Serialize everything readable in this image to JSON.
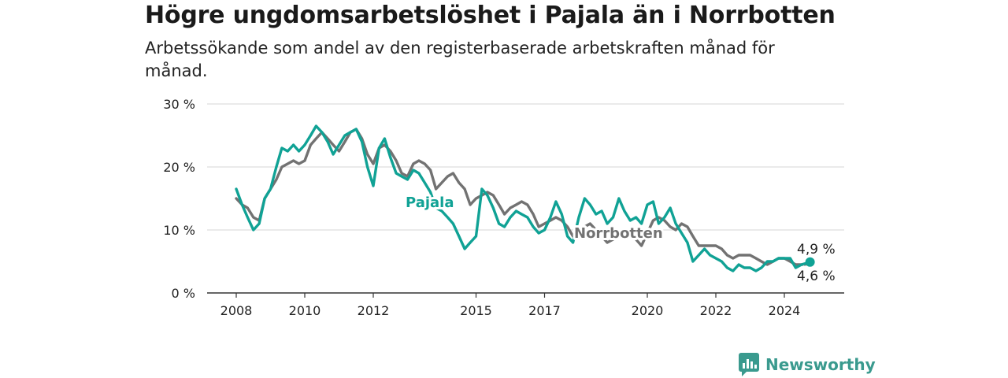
{
  "header": {
    "title": "Högre ungdomsarbetslöshet i Pajala än i Norrbotten",
    "subtitle": "Arbetssökande som andel av den registerbaserade arbetskraften månad för månad."
  },
  "brand": {
    "name": "Newsworthy",
    "icon": "newsworthy-logo-icon",
    "color": "#3a9a8e"
  },
  "chart_data": {
    "type": "line",
    "title": "Högre ungdomsarbetslöshet i Pajala än i Norrbotten",
    "subtitle": "Arbetssökande som andel av den registerbaserade arbetskraften månad för månad.",
    "x_range": [
      2008.0,
      2024.75
    ],
    "ylim": [
      0,
      30
    ],
    "y_ticks": [
      0,
      10,
      20,
      30
    ],
    "y_tick_labels": [
      "0 %",
      "10 %",
      "20 %",
      "30 %"
    ],
    "x_ticks": [
      2008,
      2010,
      2012,
      2015,
      2017,
      2020,
      2022,
      2024
    ],
    "x_tick_labels": [
      "2008",
      "2010",
      "2012",
      "2015",
      "2017",
      "2020",
      "2022",
      "2024"
    ],
    "grid": "horizontal",
    "series": [
      {
        "name": "Norrbotten",
        "color": "#727272",
        "end_label": "4,6 %",
        "points": [
          [
            2008.0,
            15.0
          ],
          [
            2008.17,
            14.0
          ],
          [
            2008.33,
            13.5
          ],
          [
            2008.5,
            12.0
          ],
          [
            2008.67,
            11.5
          ],
          [
            2008.83,
            15.0
          ],
          [
            2009.0,
            16.5
          ],
          [
            2009.17,
            18.0
          ],
          [
            2009.33,
            20.0
          ],
          [
            2009.5,
            20.5
          ],
          [
            2009.67,
            21.0
          ],
          [
            2009.83,
            20.5
          ],
          [
            2010.0,
            21.0
          ],
          [
            2010.17,
            23.5
          ],
          [
            2010.33,
            24.5
          ],
          [
            2010.5,
            25.5
          ],
          [
            2010.67,
            24.5
          ],
          [
            2010.83,
            23.5
          ],
          [
            2011.0,
            22.5
          ],
          [
            2011.17,
            24.0
          ],
          [
            2011.33,
            25.5
          ],
          [
            2011.5,
            26.0
          ],
          [
            2011.67,
            24.5
          ],
          [
            2011.83,
            22.0
          ],
          [
            2012.0,
            20.5
          ],
          [
            2012.17,
            23.0
          ],
          [
            2012.33,
            23.5
          ],
          [
            2012.5,
            22.5
          ],
          [
            2012.67,
            21.0
          ],
          [
            2012.83,
            19.0
          ],
          [
            2013.0,
            18.5
          ],
          [
            2013.17,
            20.5
          ],
          [
            2013.33,
            21.0
          ],
          [
            2013.5,
            20.5
          ],
          [
            2013.67,
            19.5
          ],
          [
            2013.83,
            16.5
          ],
          [
            2014.0,
            17.5
          ],
          [
            2014.17,
            18.5
          ],
          [
            2014.33,
            19.0
          ],
          [
            2014.5,
            17.5
          ],
          [
            2014.67,
            16.5
          ],
          [
            2014.83,
            14.0
          ],
          [
            2015.0,
            15.0
          ],
          [
            2015.17,
            15.5
          ],
          [
            2015.33,
            16.0
          ],
          [
            2015.5,
            15.5
          ],
          [
            2015.67,
            14.0
          ],
          [
            2015.83,
            12.5
          ],
          [
            2016.0,
            13.5
          ],
          [
            2016.17,
            14.0
          ],
          [
            2016.33,
            14.5
          ],
          [
            2016.5,
            14.0
          ],
          [
            2016.67,
            12.5
          ],
          [
            2016.83,
            10.5
          ],
          [
            2017.0,
            11.0
          ],
          [
            2017.17,
            11.5
          ],
          [
            2017.33,
            12.0
          ],
          [
            2017.5,
            11.5
          ],
          [
            2017.67,
            10.5
          ],
          [
            2017.83,
            9.0
          ],
          [
            2018.0,
            10.0
          ],
          [
            2018.17,
            10.5
          ],
          [
            2018.33,
            11.0
          ],
          [
            2018.5,
            10.0
          ],
          [
            2018.67,
            9.0
          ],
          [
            2018.83,
            8.0
          ],
          [
            2019.0,
            8.5
          ],
          [
            2019.17,
            9.5
          ],
          [
            2019.33,
            10.0
          ],
          [
            2019.5,
            9.5
          ],
          [
            2019.67,
            8.5
          ],
          [
            2019.83,
            7.5
          ],
          [
            2020.0,
            9.5
          ],
          [
            2020.17,
            11.5
          ],
          [
            2020.33,
            12.0
          ],
          [
            2020.5,
            11.5
          ],
          [
            2020.67,
            10.5
          ],
          [
            2020.83,
            10.0
          ],
          [
            2021.0,
            11.0
          ],
          [
            2021.17,
            10.5
          ],
          [
            2021.33,
            9.0
          ],
          [
            2021.5,
            7.5
          ],
          [
            2021.67,
            7.5
          ],
          [
            2021.83,
            7.5
          ],
          [
            2022.0,
            7.5
          ],
          [
            2022.17,
            7.0
          ],
          [
            2022.33,
            6.0
          ],
          [
            2022.5,
            5.5
          ],
          [
            2022.67,
            6.0
          ],
          [
            2022.83,
            6.0
          ],
          [
            2023.0,
            6.0
          ],
          [
            2023.17,
            5.5
          ],
          [
            2023.33,
            5.0
          ],
          [
            2023.5,
            4.5
          ],
          [
            2023.67,
            5.0
          ],
          [
            2023.83,
            5.5
          ],
          [
            2024.0,
            5.5
          ],
          [
            2024.17,
            5.0
          ],
          [
            2024.33,
            4.5
          ],
          [
            2024.5,
            4.5
          ],
          [
            2024.75,
            4.6
          ]
        ]
      },
      {
        "name": "Pajala",
        "color": "#10a295",
        "end_label": "4,9 %",
        "points": [
          [
            2008.0,
            16.5
          ],
          [
            2008.17,
            14.0
          ],
          [
            2008.33,
            12.0
          ],
          [
            2008.5,
            10.0
          ],
          [
            2008.67,
            11.0
          ],
          [
            2008.83,
            15.0
          ],
          [
            2009.0,
            16.5
          ],
          [
            2009.17,
            20.0
          ],
          [
            2009.33,
            23.0
          ],
          [
            2009.5,
            22.5
          ],
          [
            2009.67,
            23.5
          ],
          [
            2009.83,
            22.5
          ],
          [
            2010.0,
            23.5
          ],
          [
            2010.17,
            25.0
          ],
          [
            2010.33,
            26.5
          ],
          [
            2010.5,
            25.5
          ],
          [
            2010.67,
            24.0
          ],
          [
            2010.83,
            22.0
          ],
          [
            2011.0,
            23.5
          ],
          [
            2011.17,
            25.0
          ],
          [
            2011.33,
            25.5
          ],
          [
            2011.5,
            26.0
          ],
          [
            2011.67,
            24.0
          ],
          [
            2011.83,
            20.0
          ],
          [
            2012.0,
            17.0
          ],
          [
            2012.17,
            23.0
          ],
          [
            2012.33,
            24.5
          ],
          [
            2012.5,
            21.5
          ],
          [
            2012.67,
            19.0
          ],
          [
            2012.83,
            18.5
          ],
          [
            2013.0,
            18.0
          ],
          [
            2013.17,
            19.5
          ],
          [
            2013.33,
            19.0
          ],
          [
            2013.5,
            17.5
          ],
          [
            2013.67,
            16.0
          ],
          [
            2013.83,
            13.5
          ],
          [
            2014.0,
            13.0
          ],
          [
            2014.17,
            12.0
          ],
          [
            2014.33,
            11.0
          ],
          [
            2014.5,
            9.0
          ],
          [
            2014.67,
            7.0
          ],
          [
            2014.83,
            8.0
          ],
          [
            2015.0,
            9.0
          ],
          [
            2015.17,
            16.5
          ],
          [
            2015.33,
            15.5
          ],
          [
            2015.5,
            13.5
          ],
          [
            2015.67,
            11.0
          ],
          [
            2015.83,
            10.5
          ],
          [
            2016.0,
            12.0
          ],
          [
            2016.17,
            13.0
          ],
          [
            2016.33,
            12.5
          ],
          [
            2016.5,
            12.0
          ],
          [
            2016.67,
            10.5
          ],
          [
            2016.83,
            9.5
          ],
          [
            2017.0,
            10.0
          ],
          [
            2017.17,
            12.0
          ],
          [
            2017.33,
            14.5
          ],
          [
            2017.5,
            12.5
          ],
          [
            2017.67,
            9.0
          ],
          [
            2017.83,
            8.0
          ],
          [
            2018.0,
            12.0
          ],
          [
            2018.17,
            15.0
          ],
          [
            2018.33,
            14.0
          ],
          [
            2018.5,
            12.5
          ],
          [
            2018.67,
            13.0
          ],
          [
            2018.83,
            11.0
          ],
          [
            2019.0,
            12.0
          ],
          [
            2019.17,
            15.0
          ],
          [
            2019.33,
            13.0
          ],
          [
            2019.5,
            11.5
          ],
          [
            2019.67,
            12.0
          ],
          [
            2019.83,
            11.0
          ],
          [
            2020.0,
            14.0
          ],
          [
            2020.17,
            14.5
          ],
          [
            2020.33,
            11.0
          ],
          [
            2020.5,
            12.0
          ],
          [
            2020.67,
            13.5
          ],
          [
            2020.83,
            11.0
          ],
          [
            2021.0,
            9.5
          ],
          [
            2021.17,
            8.0
          ],
          [
            2021.33,
            5.0
          ],
          [
            2021.5,
            6.0
          ],
          [
            2021.67,
            7.0
          ],
          [
            2021.83,
            6.0
          ],
          [
            2022.0,
            5.5
          ],
          [
            2022.17,
            5.0
          ],
          [
            2022.33,
            4.0
          ],
          [
            2022.5,
            3.5
          ],
          [
            2022.67,
            4.5
          ],
          [
            2022.83,
            4.0
          ],
          [
            2023.0,
            4.0
          ],
          [
            2023.17,
            3.5
          ],
          [
            2023.33,
            4.0
          ],
          [
            2023.5,
            5.0
          ],
          [
            2023.67,
            5.0
          ],
          [
            2023.83,
            5.5
          ],
          [
            2024.0,
            5.5
          ],
          [
            2024.17,
            5.5
          ],
          [
            2024.33,
            4.0
          ],
          [
            2024.5,
            4.5
          ],
          [
            2024.75,
            4.9
          ]
        ]
      }
    ]
  }
}
